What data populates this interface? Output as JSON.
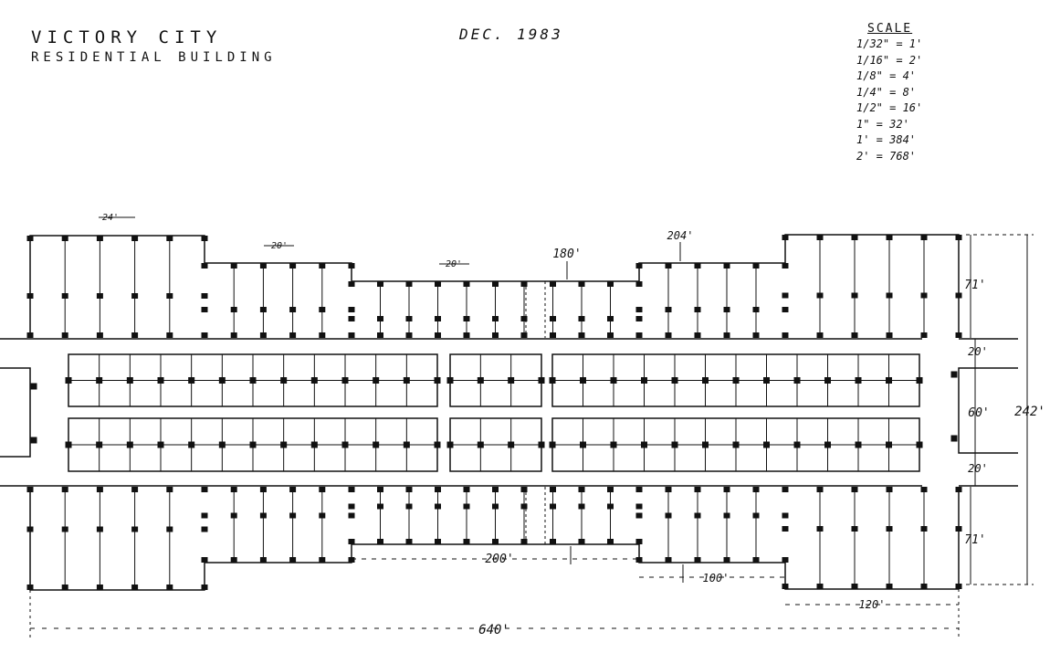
{
  "title_line1": "VICTORY CITY",
  "title_line2": "RESIDENTIAL BUILDING",
  "date": "DEC. 1983",
  "scale": {
    "heading": "SCALE",
    "entries": [
      "1/32\" = 1'",
      "1/16\" = 2'",
      "1/8\" = 4'",
      "1/4\" = 8'",
      "1/2\" = 16'",
      "1\" = 32'",
      "1' = 384'",
      "2' = 768'"
    ]
  },
  "dimensions": {
    "bay_24": "24'",
    "bay_20a": "20'",
    "bay_20b": "20'",
    "depth_180": "180'",
    "depth_204": "204'",
    "wing_71_top": "71'",
    "street_20_top": "20'",
    "center_60": "60'",
    "street_20_bottom": "20'",
    "total_242": "242'",
    "wing_71_bottom": "71'",
    "span_200": "200'",
    "span_100": "100'",
    "span_120": "120'",
    "total_640": "640'"
  }
}
